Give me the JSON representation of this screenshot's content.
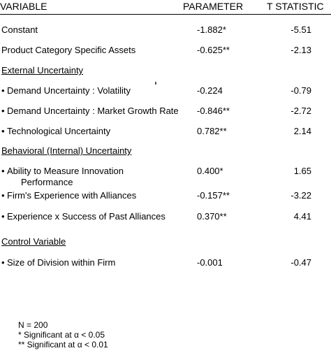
{
  "table": {
    "header": {
      "variable": "VARIABLE",
      "parameter": "PARAMETER",
      "t_statistic": "T STATISTIC"
    },
    "rows": [
      {
        "label": "Constant",
        "parameter": "-1.882*",
        "t": "-5.51"
      },
      {
        "label": "Product Category Specific Assets",
        "parameter": "-0.625**",
        "t": "-2.13"
      },
      {
        "section": "External Uncertainty"
      },
      {
        "label": "Demand Uncertainty : Volatility",
        "parameter": "-0.224",
        "t": "-0.79"
      },
      {
        "label": "Demand Uncertainty : Market Growth Rate",
        "parameter": "-0.846**",
        "t": "-2.72"
      },
      {
        "label": "Technological Uncertainty",
        "parameter": "0.782**",
        "t": "2.14"
      },
      {
        "section": "Behavioral (Internal) Uncertainty"
      },
      {
        "label": "Ability to Measure Innovation",
        "label2": "Performance",
        "parameter": "0.400*",
        "t": "1.65"
      },
      {
        "label": "Firm's Experience with Alliances",
        "parameter": "-0.157**",
        "t": "-3.22"
      },
      {
        "label": "Experience x Success of Past Alliances",
        "parameter": "0.370**",
        "t": "4.41"
      },
      {
        "section": "Control Variable"
      },
      {
        "label": "Size of Division within Firm",
        "parameter": "-0.001",
        "t": "-0.47"
      }
    ]
  },
  "notes": {
    "n": "N = 200",
    "sig1": "*   Significant at α < 0.05",
    "sig2": "**  Significant at α < 0.01"
  },
  "bullet_glyph": "•"
}
